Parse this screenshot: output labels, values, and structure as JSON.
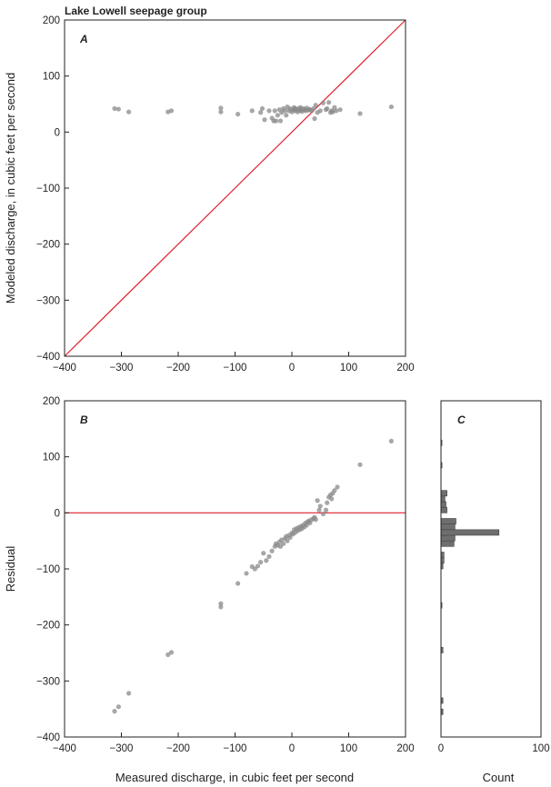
{
  "figure_title": "Lake Lowell seepage group",
  "colors": {
    "reference_line": "#e0202a",
    "point": "#8a8a8a",
    "bar": "#6e6e6e",
    "frame": "#222222"
  },
  "chart_data": [
    {
      "panel": "A",
      "type": "scatter",
      "xlabel": "",
      "ylabel": "Modeled discharge, in cubic feet per second",
      "xlim": [
        -400,
        200
      ],
      "ylim": [
        -400,
        200
      ],
      "xticks": [
        -400,
        -300,
        -200,
        -100,
        0,
        100,
        200
      ],
      "yticks": [
        -400,
        -300,
        -200,
        -100,
        0,
        100,
        200
      ],
      "reference_line": "1:1",
      "points": [
        [
          -312,
          42
        ],
        [
          -305,
          41
        ],
        [
          -287,
          36
        ],
        [
          -218,
          36
        ],
        [
          -212,
          38
        ],
        [
          -125,
          43
        ],
        [
          -125,
          36
        ],
        [
          -95,
          32
        ],
        [
          -70,
          38
        ],
        [
          -55,
          35
        ],
        [
          -52,
          42
        ],
        [
          -48,
          22
        ],
        [
          -40,
          38
        ],
        [
          -35,
          25
        ],
        [
          -32,
          20
        ],
        [
          -30,
          38
        ],
        [
          -28,
          20
        ],
        [
          -25,
          30
        ],
        [
          -22,
          40
        ],
        [
          -20,
          20
        ],
        [
          -18,
          35
        ],
        [
          -15,
          42
        ],
        [
          -12,
          38
        ],
        [
          -10,
          30
        ],
        [
          -8,
          45
        ],
        [
          -5,
          38
        ],
        [
          -3,
          42
        ],
        [
          0,
          36
        ],
        [
          2,
          40
        ],
        [
          4,
          44
        ],
        [
          5,
          38
        ],
        [
          6,
          42
        ],
        [
          8,
          40
        ],
        [
          10,
          36
        ],
        [
          12,
          42
        ],
        [
          14,
          38
        ],
        [
          15,
          44
        ],
        [
          16,
          40
        ],
        [
          18,
          37
        ],
        [
          20,
          42
        ],
        [
          22,
          40
        ],
        [
          24,
          38
        ],
        [
          26,
          43
        ],
        [
          28,
          39
        ],
        [
          30,
          41
        ],
        [
          32,
          40
        ],
        [
          35,
          38
        ],
        [
          38,
          42
        ],
        [
          40,
          24
        ],
        [
          42,
          48
        ],
        [
          45,
          35
        ],
        [
          50,
          38
        ],
        [
          55,
          52
        ],
        [
          60,
          40
        ],
        [
          62,
          42
        ],
        [
          65,
          53
        ],
        [
          68,
          35
        ],
        [
          70,
          38
        ],
        [
          72,
          36
        ],
        [
          75,
          44
        ],
        [
          78,
          38
        ],
        [
          85,
          40
        ],
        [
          120,
          33
        ],
        [
          175,
          45
        ]
      ]
    },
    {
      "panel": "B",
      "type": "scatter",
      "xlabel": "Measured discharge, in cubic feet per second",
      "ylabel": "Residual",
      "xlim": [
        -400,
        200
      ],
      "ylim": [
        -400,
        200
      ],
      "xticks": [
        -400,
        -300,
        -200,
        -100,
        0,
        100,
        200
      ],
      "yticks": [
        -400,
        -300,
        -200,
        -100,
        0,
        100,
        200
      ],
      "reference_line": "y=0",
      "points": [
        [
          -312,
          -354
        ],
        [
          -305,
          -346
        ],
        [
          -287,
          -322
        ],
        [
          -218,
          -253
        ],
        [
          -212,
          -249
        ],
        [
          -125,
          -162
        ],
        [
          -125,
          -168
        ],
        [
          -95,
          -126
        ],
        [
          -80,
          -108
        ],
        [
          -70,
          -96
        ],
        [
          -65,
          -100
        ],
        [
          -60,
          -95
        ],
        [
          -55,
          -88
        ],
        [
          -50,
          -72
        ],
        [
          -45,
          -85
        ],
        [
          -40,
          -78
        ],
        [
          -35,
          -68
        ],
        [
          -30,
          -60
        ],
        [
          -28,
          -55
        ],
        [
          -25,
          -58
        ],
        [
          -22,
          -52
        ],
        [
          -20,
          -60
        ],
        [
          -18,
          -48
        ],
        [
          -15,
          -55
        ],
        [
          -12,
          -46
        ],
        [
          -10,
          -42
        ],
        [
          -8,
          -50
        ],
        [
          -5,
          -40
        ],
        [
          -3,
          -44
        ],
        [
          0,
          -36
        ],
        [
          2,
          -38
        ],
        [
          4,
          -30
        ],
        [
          6,
          -35
        ],
        [
          8,
          -28
        ],
        [
          10,
          -32
        ],
        [
          12,
          -26
        ],
        [
          14,
          -30
        ],
        [
          16,
          -24
        ],
        [
          18,
          -28
        ],
        [
          20,
          -22
        ],
        [
          22,
          -25
        ],
        [
          24,
          -18
        ],
        [
          26,
          -22
        ],
        [
          28,
          -16
        ],
        [
          30,
          -14
        ],
        [
          32,
          -18
        ],
        [
          35,
          -12
        ],
        [
          38,
          -10
        ],
        [
          40,
          -8
        ],
        [
          42,
          -12
        ],
        [
          45,
          22
        ],
        [
          48,
          5
        ],
        [
          50,
          12
        ],
        [
          55,
          -2
        ],
        [
          60,
          5
        ],
        [
          62,
          18
        ],
        [
          65,
          28
        ],
        [
          68,
          32
        ],
        [
          70,
          25
        ],
        [
          72,
          35
        ],
        [
          75,
          40
        ],
        [
          80,
          46
        ],
        [
          120,
          86
        ],
        [
          175,
          128
        ]
      ]
    },
    {
      "panel": "C",
      "type": "bar",
      "orientation": "horizontal",
      "xlabel": "Count",
      "xlim": [
        0,
        100
      ],
      "xticks": [
        0,
        100
      ],
      "ylim": [
        -400,
        200
      ],
      "bin_width": 10,
      "bins": [
        [
          -360,
          -350,
          2
        ],
        [
          -340,
          -330,
          2
        ],
        [
          -250,
          -240,
          2
        ],
        [
          -170,
          -160,
          1
        ],
        [
          -100,
          -90,
          2
        ],
        [
          -90,
          -80,
          3
        ],
        [
          -80,
          -70,
          3
        ],
        [
          -60,
          -50,
          13
        ],
        [
          -50,
          -40,
          14
        ],
        [
          -40,
          -30,
          58
        ],
        [
          -30,
          -20,
          14
        ],
        [
          -20,
          -10,
          15
        ],
        [
          0,
          10,
          6
        ],
        [
          10,
          20,
          5
        ],
        [
          20,
          30,
          4
        ],
        [
          30,
          40,
          6
        ],
        [
          80,
          90,
          1
        ],
        [
          120,
          130,
          1
        ]
      ]
    }
  ]
}
